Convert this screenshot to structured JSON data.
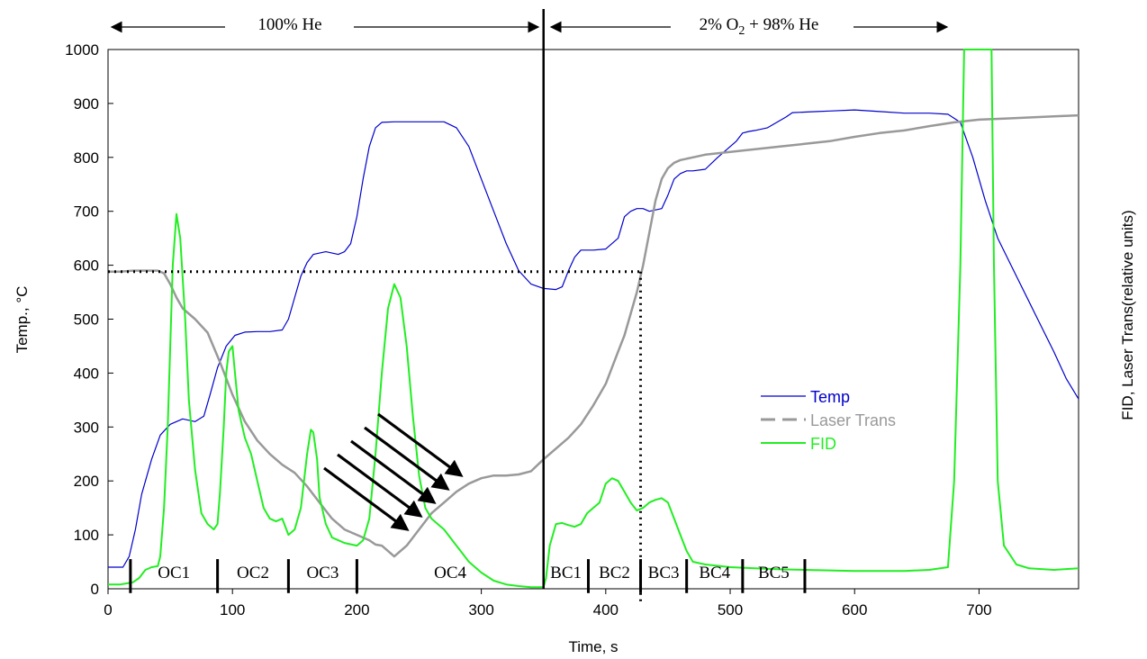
{
  "chart_data": {
    "type": "line",
    "xlabel": "Time, s",
    "ylabel": "Temp., °C",
    "y2label": "FID, Laser Trans(relative units)",
    "xlim": [
      0,
      780
    ],
    "ylim": [
      0,
      1000
    ],
    "xticks": [
      "0",
      "100",
      "200",
      "300",
      "400",
      "500",
      "600",
      "700"
    ],
    "yticks": [
      "0",
      "100",
      "200",
      "300",
      "400",
      "500",
      "600",
      "700",
      "800",
      "900",
      "1000"
    ],
    "grid": false,
    "legend_position": "center-right",
    "colors": {
      "Temp": "#0000cc",
      "Laser Trans": "#999999",
      "FID": "#22ee22",
      "annotation": "#000000"
    },
    "series": [
      {
        "name": "Temp",
        "x": [
          0,
          12,
          17,
          22,
          27,
          35,
          42,
          50,
          60,
          70,
          77,
          82,
          88,
          95,
          102,
          110,
          120,
          130,
          140,
          145,
          150,
          155,
          160,
          165,
          175,
          185,
          190,
          195,
          200,
          205,
          210,
          215,
          220,
          230,
          240,
          250,
          260,
          270,
          280,
          290,
          300,
          310,
          320,
          330,
          340,
          350,
          360,
          365,
          370,
          375,
          380,
          385,
          390,
          400,
          410,
          415,
          420,
          425,
          430,
          435,
          445,
          450,
          455,
          460,
          465,
          470,
          480,
          490,
          505,
          510,
          515,
          520,
          530,
          545,
          550,
          560,
          570,
          580,
          600,
          620,
          640,
          660,
          675,
          685,
          695,
          705,
          715,
          730,
          745,
          760,
          770,
          780
        ],
        "y": [
          40,
          40,
          60,
          110,
          175,
          240,
          285,
          305,
          315,
          310,
          320,
          360,
          410,
          450,
          470,
          476,
          477,
          477,
          480,
          500,
          540,
          580,
          605,
          620,
          625,
          620,
          625,
          640,
          690,
          760,
          820,
          855,
          865,
          866,
          866,
          866,
          866,
          866,
          855,
          820,
          760,
          700,
          640,
          590,
          565,
          557,
          555,
          560,
          590,
          615,
          628,
          628,
          628,
          630,
          650,
          690,
          700,
          705,
          705,
          700,
          705,
          730,
          760,
          770,
          775,
          775,
          778,
          800,
          830,
          845,
          848,
          850,
          855,
          875,
          883,
          884,
          885,
          886,
          888,
          885,
          882,
          882,
          880,
          865,
          800,
          720,
          650,
          580,
          510,
          440,
          390,
          352
        ]
      },
      {
        "name": "Laser Trans",
        "x": [
          0,
          10,
          20,
          30,
          40,
          45,
          50,
          55,
          60,
          70,
          80,
          90,
          100,
          110,
          120,
          130,
          140,
          150,
          160,
          170,
          180,
          190,
          200,
          205,
          210,
          215,
          220,
          225,
          230,
          240,
          250,
          260,
          270,
          280,
          290,
          300,
          310,
          320,
          330,
          340,
          350,
          360,
          370,
          380,
          390,
          400,
          410,
          415,
          420,
          425,
          430,
          435,
          440,
          445,
          450,
          455,
          460,
          470,
          480,
          500,
          520,
          540,
          560,
          580,
          600,
          620,
          640,
          660,
          680,
          700,
          720,
          740,
          760,
          780
        ],
        "y": [
          588,
          588,
          590,
          590,
          590,
          585,
          565,
          540,
          520,
          500,
          475,
          420,
          360,
          310,
          275,
          250,
          230,
          215,
          190,
          160,
          130,
          110,
          100,
          95,
          90,
          82,
          80,
          70,
          60,
          80,
          110,
          140,
          160,
          180,
          195,
          205,
          210,
          210,
          212,
          218,
          240,
          260,
          280,
          305,
          340,
          380,
          440,
          470,
          510,
          550,
          600,
          660,
          720,
          760,
          780,
          790,
          795,
          800,
          805,
          810,
          815,
          820,
          825,
          830,
          838,
          845,
          850,
          858,
          865,
          870,
          872,
          874,
          876,
          878
        ]
      },
      {
        "name": "FID",
        "x": [
          0,
          10,
          15,
          20,
          25,
          30,
          35,
          40,
          42,
          45,
          48,
          50,
          52,
          55,
          58,
          62,
          65,
          70,
          75,
          80,
          85,
          88,
          90,
          93,
          95,
          97,
          100,
          102,
          105,
          110,
          115,
          120,
          125,
          130,
          135,
          140,
          145,
          150,
          155,
          160,
          163,
          165,
          168,
          170,
          175,
          180,
          185,
          190,
          200,
          205,
          210,
          215,
          220,
          225,
          230,
          235,
          240,
          245,
          250,
          255,
          260,
          265,
          270,
          280,
          290,
          300,
          310,
          320,
          330,
          340,
          345,
          350,
          352,
          355,
          360,
          365,
          370,
          375,
          380,
          385,
          390,
          395,
          400,
          405,
          410,
          415,
          420,
          425,
          430,
          435,
          440,
          445,
          450,
          455,
          460,
          465,
          470,
          480,
          500,
          520,
          540,
          560,
          580,
          600,
          620,
          640,
          660,
          675,
          680,
          685,
          688,
          690,
          692,
          700,
          708,
          710,
          712,
          715,
          720,
          730,
          740,
          760,
          780
        ],
        "y": [
          8,
          8,
          10,
          12,
          20,
          35,
          40,
          42,
          60,
          150,
          300,
          450,
          600,
          695,
          650,
          500,
          350,
          220,
          140,
          120,
          110,
          120,
          180,
          300,
          400,
          440,
          450,
          400,
          330,
          280,
          250,
          200,
          150,
          130,
          125,
          130,
          100,
          110,
          150,
          250,
          295,
          290,
          240,
          170,
          120,
          95,
          90,
          85,
          80,
          90,
          130,
          250,
          400,
          520,
          565,
          540,
          450,
          320,
          210,
          150,
          130,
          120,
          110,
          80,
          50,
          30,
          15,
          8,
          5,
          3,
          3,
          3,
          20,
          80,
          120,
          122,
          118,
          115,
          120,
          140,
          150,
          160,
          195,
          205,
          200,
          180,
          160,
          145,
          150,
          160,
          165,
          168,
          160,
          130,
          100,
          70,
          50,
          45,
          40,
          38,
          36,
          35,
          34,
          33,
          33,
          33,
          35,
          40,
          200,
          600,
          1000,
          1000,
          1000,
          1000,
          1000,
          1000,
          600,
          200,
          80,
          45,
          38,
          35,
          38
        ]
      }
    ],
    "annotations": {
      "region_left": "100% He",
      "region_right_parts": [
        "2% O",
        "2",
        " + 98% He"
      ],
      "phases_oc": [
        "OC1",
        "OC2",
        "OC3",
        "OC4"
      ],
      "phases_bc": [
        "BC1",
        "BC2",
        "BC3",
        "BC4",
        "BC5"
      ],
      "phase_boundaries": [
        18,
        88,
        145,
        200,
        350,
        386,
        428,
        465,
        510,
        560
      ],
      "divider_x": 350,
      "dotted_reference": {
        "y": 588,
        "x_end": 428
      },
      "arrow_count": 5
    }
  }
}
